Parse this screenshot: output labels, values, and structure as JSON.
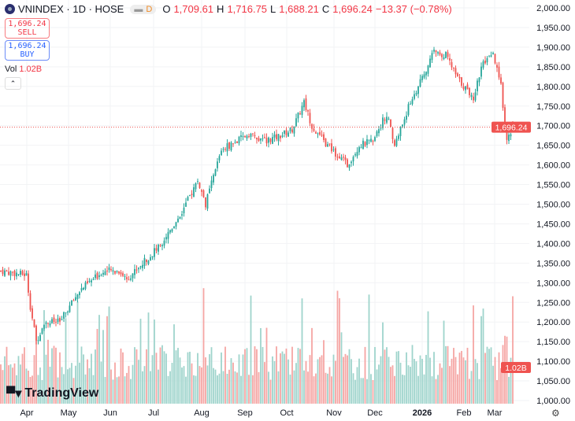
{
  "header": {
    "symbol": "VNINDEX · 1D · HOSE",
    "interval_badge": "D",
    "open_label": "O",
    "open": "1,709.61",
    "high_label": "H",
    "high": "1,716.75",
    "low_label": "L",
    "low": "1,688.21",
    "close_label": "C",
    "close": "1,696.24",
    "change": "−13.37 (−0.78%)"
  },
  "sell": {
    "price": "1,696.24",
    "label": "SELL"
  },
  "buy": {
    "price": "1,696.24",
    "label": "BUY"
  },
  "volume": {
    "label": "Vol",
    "value": "1.02B"
  },
  "branding": "TradingView",
  "colors": {
    "up": "#26a69a",
    "down": "#ef5350",
    "up_vol": "#9fd4cc",
    "down_vol": "#f5a5a3"
  },
  "chart_data": {
    "type": "candlestick",
    "title": "VNINDEX · 1D · HOSE",
    "yticks": [
      "2,000.00",
      "1,950.00",
      "1,900.00",
      "1,850.00",
      "1,800.00",
      "1,750.00",
      "1,700.00",
      "1,650.00",
      "1,600.00",
      "1,550.00",
      "1,500.00",
      "1,450.00",
      "1,400.00",
      "1,350.00",
      "1,300.00",
      "1,250.00",
      "1,200.00",
      "1,150.00",
      "1,100.00",
      "1,050.00",
      "1,000.00"
    ],
    "ylim": [
      1000,
      2000
    ],
    "xticks": [
      "Apr",
      "May",
      "Jun",
      "Jul",
      "Aug",
      "Sep",
      "Oct",
      "Nov",
      "Dec",
      "2026",
      "Feb",
      "Mar"
    ],
    "last_price_label": "1,696.24",
    "last_price": 1696.24,
    "last_volume_label": "1.02B",
    "close_path_by_day": [
      [
        0,
        1330
      ],
      [
        13,
        1320
      ],
      [
        15,
        1240
      ],
      [
        18,
        1150
      ],
      [
        22,
        1200
      ],
      [
        30,
        1200
      ],
      [
        40,
        1280
      ],
      [
        52,
        1330
      ],
      [
        60,
        1330
      ],
      [
        64,
        1310
      ],
      [
        80,
        1390
      ],
      [
        92,
        1480
      ],
      [
        100,
        1560
      ],
      [
        104,
        1500
      ],
      [
        112,
        1640
      ],
      [
        120,
        1660
      ],
      [
        126,
        1680
      ],
      [
        132,
        1660
      ],
      [
        140,
        1670
      ],
      [
        148,
        1690
      ],
      [
        154,
        1760
      ],
      [
        158,
        1700
      ],
      [
        164,
        1660
      ],
      [
        172,
        1620
      ],
      [
        176,
        1600
      ],
      [
        182,
        1650
      ],
      [
        188,
        1660
      ],
      [
        196,
        1730
      ],
      [
        200,
        1650
      ],
      [
        208,
        1760
      ],
      [
        216,
        1840
      ],
      [
        220,
        1890
      ],
      [
        226,
        1880
      ],
      [
        232,
        1820
      ],
      [
        240,
        1770
      ],
      [
        244,
        1850
      ],
      [
        250,
        1880
      ],
      [
        254,
        1800
      ],
      [
        257,
        1660
      ],
      [
        260,
        1696
      ]
    ]
  }
}
